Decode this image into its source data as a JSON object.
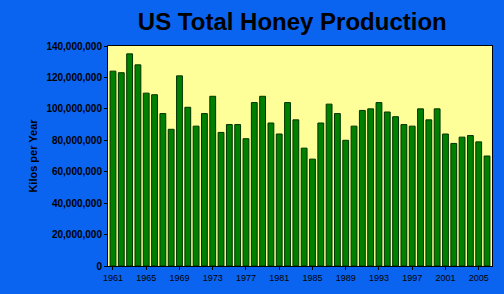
{
  "chart_data": {
    "type": "bar",
    "title": "US Total Honey Production",
    "y_label": "Kilos per Year",
    "categories": [
      "1961",
      null,
      null,
      null,
      "1965",
      null,
      null,
      null,
      "1969",
      null,
      null,
      null,
      "1973",
      null,
      null,
      null,
      "1977",
      null,
      null,
      null,
      "1981",
      null,
      null,
      null,
      "1985",
      null,
      null,
      null,
      "1989",
      null,
      null,
      null,
      "1993",
      null,
      null,
      null,
      "1997",
      null,
      null,
      null,
      "2001",
      null,
      null,
      null,
      "2005",
      null
    ],
    "values": [
      124000000,
      123000000,
      135000000,
      128000000,
      110000000,
      109000000,
      97000000,
      87000000,
      121000000,
      101000000,
      89000000,
      97000000,
      108000000,
      85000000,
      90000000,
      90000000,
      81000000,
      104000000,
      108000000,
      91000000,
      84000000,
      104000000,
      93000000,
      75000000,
      68000000,
      91000000,
      103000000,
      97000000,
      80000000,
      89000000,
      99000000,
      100000000,
      104000000,
      98000000,
      95000000,
      90000000,
      89000000,
      100000000,
      93000000,
      100000000,
      84000000,
      78000000,
      82000000,
      83000000,
      79000000,
      70000000
    ],
    "color": "#008000",
    "ylim": [
      0,
      140000000
    ],
    "yticks": [
      0,
      {
        "value": 20000000,
        "label": "20,000,000"
      },
      {
        "value": 40000000,
        "label": "40,000,000"
      },
      {
        "value": 60000000,
        "label": "60,000,000"
      },
      {
        "value": 80000000,
        "label": "80,000,000"
      },
      {
        "value": 100000000,
        "label": "100,000,000"
      },
      {
        "value": 120000000,
        "label": "120,000,000"
      },
      {
        "value": 140000000,
        "label": "140,000,000"
      }
    ],
    "grid": false
  }
}
